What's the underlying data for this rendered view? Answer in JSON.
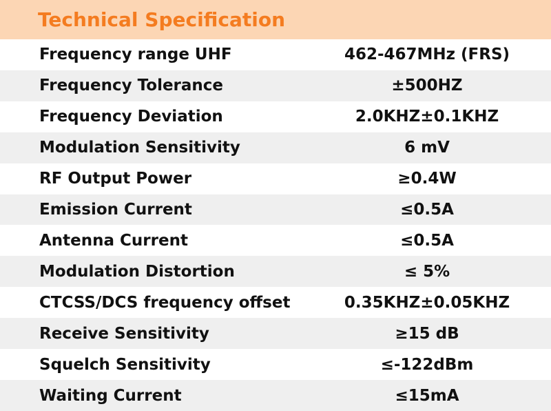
{
  "header": {
    "title": "Technical Specification"
  },
  "table": {
    "rows": [
      [
        "Frequency range UHF",
        "462-467MHz (FRS)"
      ],
      [
        "Frequency Tolerance",
        "±500HZ"
      ],
      [
        "Frequency Deviation",
        "2.0KHZ±0.1KHZ"
      ],
      [
        "Modulation Sensitivity",
        "6 mV"
      ],
      [
        "RF Output Power",
        "≥0.4W"
      ],
      [
        "Emission Current",
        "≤0.5A"
      ],
      [
        "Antenna Current",
        "≤0.5A"
      ],
      [
        "Modulation Distortion",
        "≤ 5%"
      ],
      [
        "CTCSS/DCS frequency offset",
        "0.35KHZ±0.05KHZ"
      ],
      [
        "Receive Sensitivity",
        "≥15 dB"
      ],
      [
        "Squelch Sensitivity",
        "≤-122dBm"
      ],
      [
        "Waiting Current",
        "≤15mA"
      ]
    ]
  }
}
